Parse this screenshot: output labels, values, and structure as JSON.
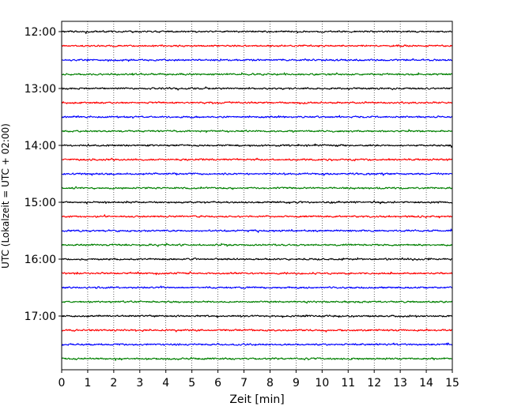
{
  "chart_data": {
    "type": "line",
    "title": "",
    "xlabel": "Zeit  [min]",
    "ylabel": "UTC (Lokalzeit = UTC + 02:00)",
    "xlim": [
      0,
      15
    ],
    "x_ticks": [
      "0",
      "1",
      "2",
      "3",
      "4",
      "5",
      "6",
      "7",
      "8",
      "9",
      "10",
      "11",
      "12",
      "13",
      "14",
      "15"
    ],
    "y_ticks": [
      "12:00",
      "13:00",
      "14:00",
      "15:00",
      "16:00",
      "17:00"
    ],
    "grid": "vertical dotted at each minute",
    "trace_interval_min": 15,
    "trace_start": "12:00",
    "trace_count": 24,
    "trace_colors": [
      "#000000",
      "#ff0000",
      "#0000ff",
      "#008000"
    ],
    "trace_kind": "seismogram (low-amplitude noise traces)"
  }
}
